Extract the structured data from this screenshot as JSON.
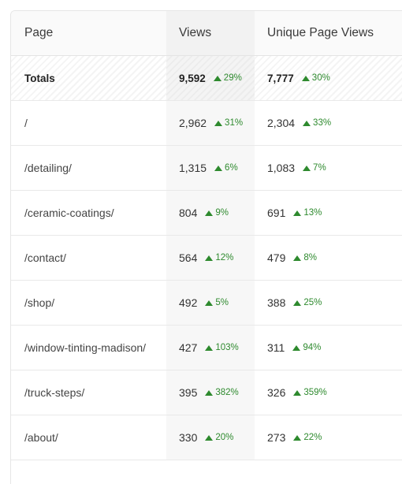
{
  "table": {
    "headers": {
      "page": "Page",
      "views": "Views",
      "unique": "Unique Page Views"
    },
    "totals": {
      "label": "Totals",
      "views": "9,592",
      "views_delta": "29%",
      "unique": "7,777",
      "unique_delta": "30%"
    },
    "rows": [
      {
        "page": "/",
        "views": "2,962",
        "views_delta": "31%",
        "unique": "2,304",
        "unique_delta": "33%"
      },
      {
        "page": "/detailing/",
        "views": "1,315",
        "views_delta": "6%",
        "unique": "1,083",
        "unique_delta": "7%"
      },
      {
        "page": "/ceramic-coatings/",
        "views": "804",
        "views_delta": "9%",
        "unique": "691",
        "unique_delta": "13%"
      },
      {
        "page": "/contact/",
        "views": "564",
        "views_delta": "12%",
        "unique": "479",
        "unique_delta": "8%"
      },
      {
        "page": "/shop/",
        "views": "492",
        "views_delta": "5%",
        "unique": "388",
        "unique_delta": "25%"
      },
      {
        "page": "/window-tinting-madison/",
        "views": "427",
        "views_delta": "103%",
        "unique": "311",
        "unique_delta": "94%"
      },
      {
        "page": "/truck-steps/",
        "views": "395",
        "views_delta": "382%",
        "unique": "326",
        "unique_delta": "359%"
      },
      {
        "page": "/about/",
        "views": "330",
        "views_delta": "20%",
        "unique": "273",
        "unique_delta": "22%"
      }
    ],
    "colors": {
      "positive": "#2e8a2e",
      "views_column_bg": "#f7f7f7"
    },
    "icons": {
      "delta": "triangle-up-icon"
    }
  }
}
